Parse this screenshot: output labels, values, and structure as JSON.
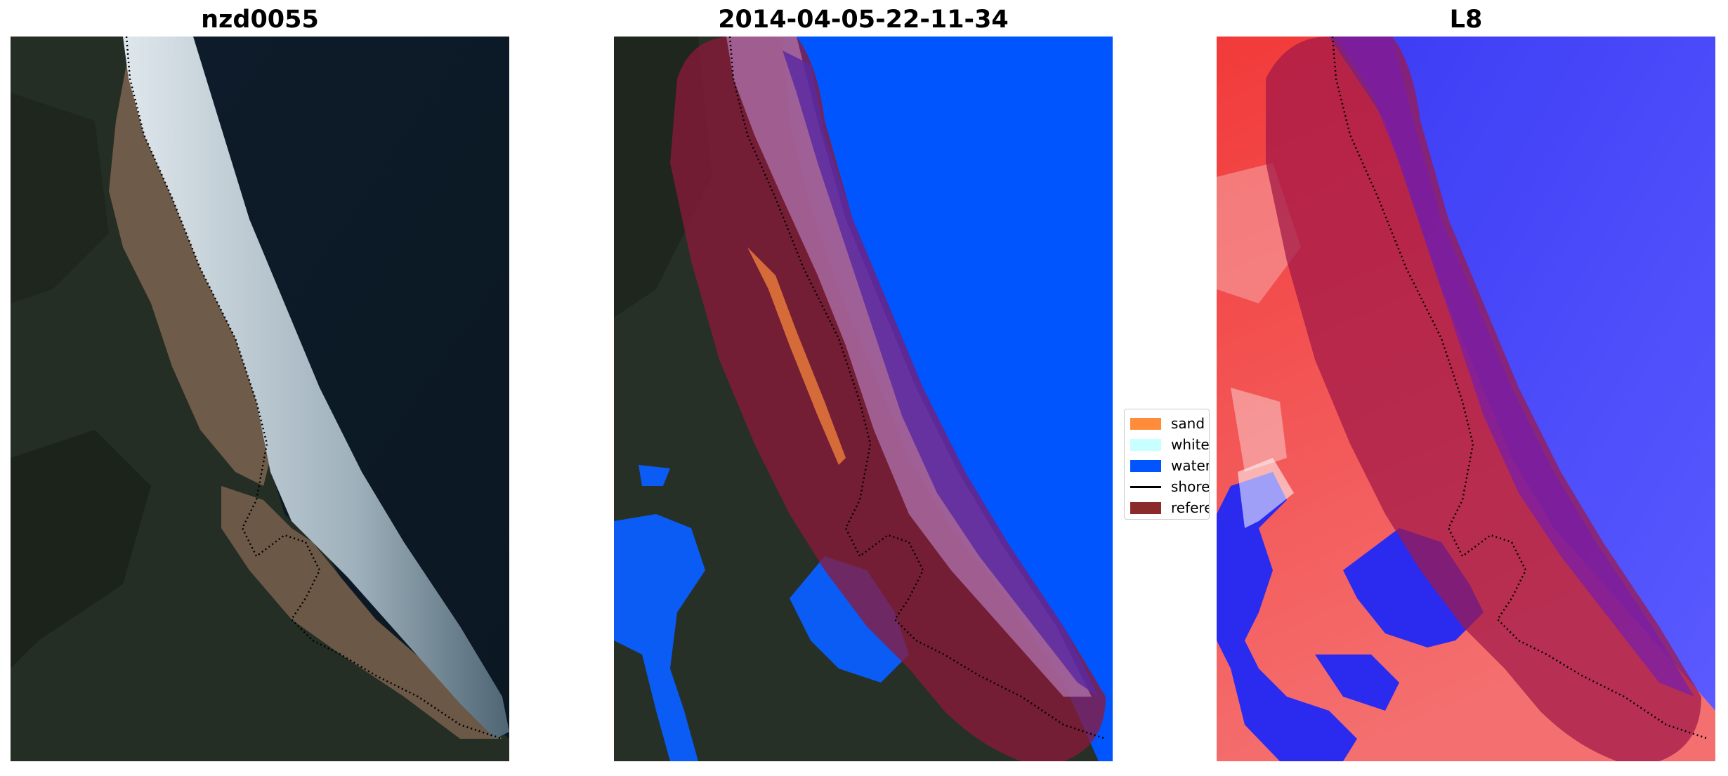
{
  "panels": [
    {
      "title": "nzd0055"
    },
    {
      "title": "2014-04-05-22-11-34"
    },
    {
      "title": "L8"
    }
  ],
  "legend": {
    "items": [
      {
        "label": "sand",
        "color": "#ff8c3a"
      },
      {
        "label": "whitew",
        "color": "#c8ffff"
      },
      {
        "label": "water",
        "color": "#0055ff"
      },
      {
        "label": "shorel",
        "color": "#000000"
      },
      {
        "label": "referer",
        "color": "#8b2a2a"
      }
    ]
  },
  "colors": {
    "ocean": "#0d1b2a",
    "land": "#2a3328",
    "beach": "#7a6652",
    "surf": "#c9d5dc",
    "water_class": "#0055ff",
    "reference_buffer": "#8b1a3a",
    "index_positive": "#ff4040",
    "index_negative": "#3030ff"
  }
}
